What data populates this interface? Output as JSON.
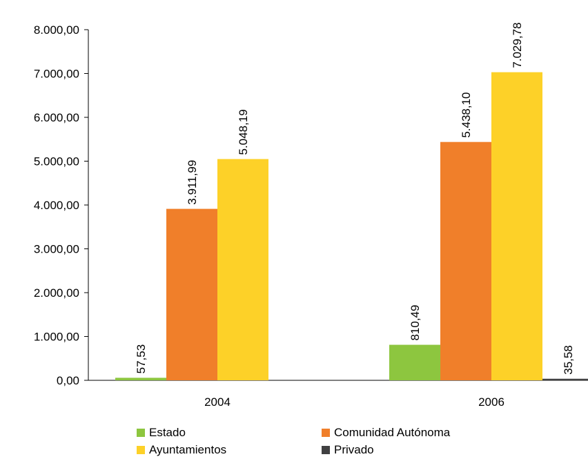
{
  "chart_data": {
    "type": "bar",
    "categories": [
      "2004",
      "2006"
    ],
    "series": [
      {
        "name": "Estado",
        "color": "#8DC63F",
        "values": [
          57.53,
          810.49
        ],
        "labels": [
          "57,53",
          "810,49"
        ]
      },
      {
        "name": "Comunidad Autónoma",
        "color": "#F07F2A",
        "values": [
          3911.99,
          5438.1
        ],
        "labels": [
          "3.911,99",
          "5.438,10"
        ]
      },
      {
        "name": "Ayuntamientos",
        "color": "#FDD128",
        "values": [
          5048.19,
          7029.78
        ],
        "labels": [
          "5.048,19",
          "7.029,78"
        ]
      },
      {
        "name": "Privado",
        "color": "#404041",
        "values": [
          0,
          35.58
        ],
        "labels": [
          "",
          "35,58"
        ]
      }
    ],
    "yticks": [
      "0,00",
      "1.000,00",
      "2.000,00",
      "3.000,00",
      "4.000,00",
      "5.000,00",
      "6.000,00",
      "7.000,00",
      "8.000,00"
    ],
    "ylim": [
      0,
      8000
    ],
    "legend_position": "bottom",
    "grid": false
  }
}
